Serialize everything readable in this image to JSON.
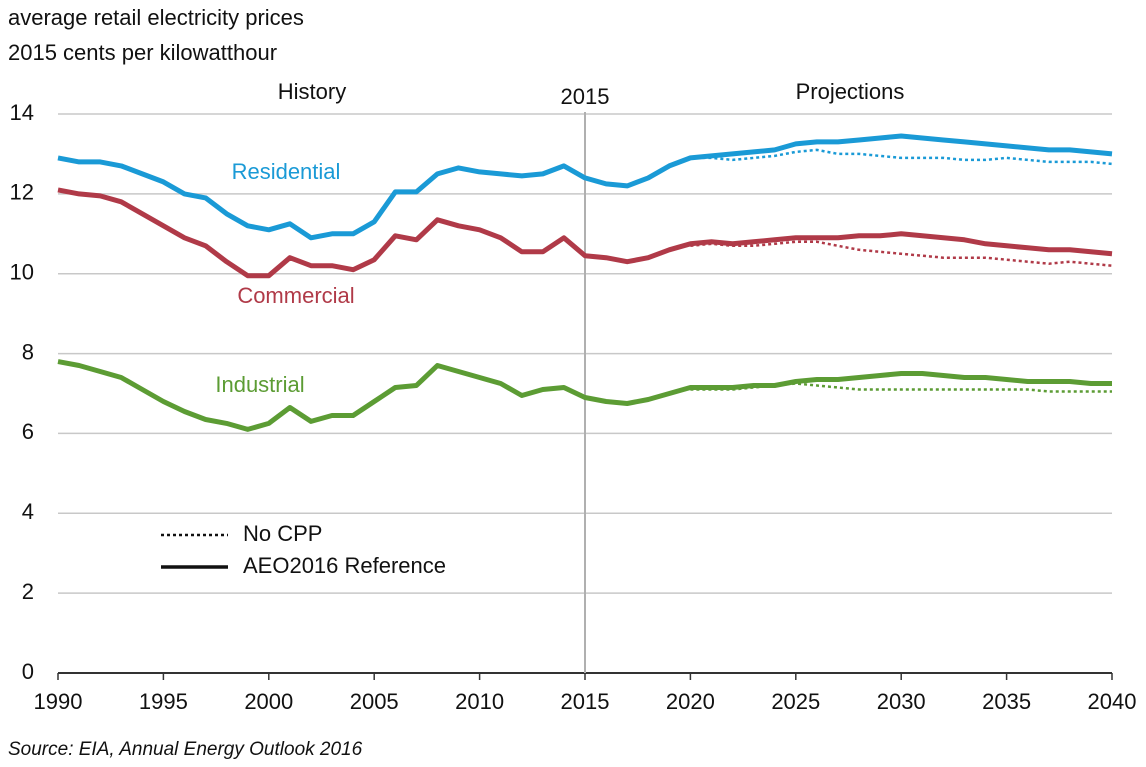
{
  "chart_data": {
    "type": "line",
    "title": "average retail electricity prices",
    "subtitle": "2015 cents per kilowatthour",
    "source": "Source:  EIA, Annual Energy Outlook 2016",
    "annotations": [
      {
        "text": "History"
      },
      {
        "text": "2015",
        "x": 2015
      },
      {
        "text": "Projections"
      }
    ],
    "legend": [
      {
        "label": "No CPP",
        "style": "dotted"
      },
      {
        "label": "AEO2016 Reference",
        "style": "solid"
      }
    ],
    "x": [
      1990,
      1991,
      1992,
      1993,
      1994,
      1995,
      1996,
      1997,
      1998,
      1999,
      2000,
      2001,
      2002,
      2003,
      2004,
      2005,
      2006,
      2007,
      2008,
      2009,
      2010,
      2011,
      2012,
      2013,
      2014,
      2015,
      2016,
      2017,
      2018,
      2019,
      2020,
      2021,
      2022,
      2023,
      2024,
      2025,
      2026,
      2027,
      2028,
      2029,
      2030,
      2031,
      2032,
      2033,
      2034,
      2035,
      2036,
      2037,
      2038,
      2039,
      2040
    ],
    "xlim": [
      1990,
      2040
    ],
    "xticks": [
      1990,
      1995,
      2000,
      2005,
      2010,
      2015,
      2020,
      2025,
      2030,
      2035,
      2040
    ],
    "ylim": [
      0,
      14
    ],
    "yticks": [
      0,
      2,
      4,
      6,
      8,
      10,
      12,
      14
    ],
    "grid": true,
    "series": [
      {
        "name": "Residential",
        "color": "#1a9ad6",
        "values": [
          12.9,
          12.8,
          12.8,
          12.7,
          12.5,
          12.3,
          12.0,
          11.9,
          11.5,
          11.2,
          11.1,
          11.25,
          10.9,
          11.0,
          11.0,
          11.3,
          12.05,
          12.05,
          12.5,
          12.65,
          12.55,
          12.5,
          12.45,
          12.5,
          12.7,
          12.4,
          12.25,
          12.2,
          12.4,
          12.7,
          12.9,
          12.95,
          13.0,
          13.05,
          13.1,
          13.25,
          13.3,
          13.3,
          13.35,
          13.4,
          13.45,
          13.4,
          13.35,
          13.3,
          13.25,
          13.2,
          13.15,
          13.1,
          13.1,
          13.05,
          13.0
        ],
        "no_cpp_values": [
          null,
          null,
          null,
          null,
          null,
          null,
          null,
          null,
          null,
          null,
          null,
          null,
          null,
          null,
          null,
          null,
          null,
          null,
          null,
          null,
          null,
          null,
          null,
          null,
          null,
          null,
          null,
          null,
          null,
          null,
          12.9,
          12.9,
          12.85,
          12.9,
          12.95,
          13.05,
          13.1,
          13.0,
          13.0,
          12.95,
          12.9,
          12.9,
          12.9,
          12.85,
          12.85,
          12.9,
          12.85,
          12.8,
          12.8,
          12.8,
          12.75
        ]
      },
      {
        "name": "Commercial",
        "color": "#b03a48",
        "values": [
          12.1,
          12.0,
          11.95,
          11.8,
          11.5,
          11.2,
          10.9,
          10.7,
          10.3,
          9.95,
          9.95,
          10.4,
          10.2,
          10.2,
          10.1,
          10.35,
          10.95,
          10.85,
          11.35,
          11.2,
          11.1,
          10.9,
          10.55,
          10.55,
          10.9,
          10.45,
          10.4,
          10.3,
          10.4,
          10.6,
          10.75,
          10.8,
          10.75,
          10.8,
          10.85,
          10.9,
          10.9,
          10.9,
          10.95,
          10.95,
          11.0,
          10.95,
          10.9,
          10.85,
          10.75,
          10.7,
          10.65,
          10.6,
          10.6,
          10.55,
          10.5
        ],
        "no_cpp_values": [
          null,
          null,
          null,
          null,
          null,
          null,
          null,
          null,
          null,
          null,
          null,
          null,
          null,
          null,
          null,
          null,
          null,
          null,
          null,
          null,
          null,
          null,
          null,
          null,
          null,
          null,
          null,
          null,
          null,
          null,
          10.7,
          10.75,
          10.7,
          10.7,
          10.75,
          10.8,
          10.8,
          10.7,
          10.6,
          10.55,
          10.5,
          10.45,
          10.4,
          10.4,
          10.4,
          10.35,
          10.3,
          10.25,
          10.3,
          10.25,
          10.2
        ]
      },
      {
        "name": "Industrial",
        "color": "#5c9c34",
        "values": [
          7.8,
          7.7,
          7.55,
          7.4,
          7.1,
          6.8,
          6.55,
          6.35,
          6.25,
          6.1,
          6.25,
          6.65,
          6.3,
          6.45,
          6.45,
          6.8,
          7.15,
          7.2,
          7.7,
          7.55,
          7.4,
          7.25,
          6.95,
          7.1,
          7.15,
          6.9,
          6.8,
          6.75,
          6.85,
          7.0,
          7.15,
          7.15,
          7.15,
          7.2,
          7.2,
          7.3,
          7.35,
          7.35,
          7.4,
          7.45,
          7.5,
          7.5,
          7.45,
          7.4,
          7.4,
          7.35,
          7.3,
          7.3,
          7.3,
          7.25,
          7.25
        ],
        "no_cpp_values": [
          null,
          null,
          null,
          null,
          null,
          null,
          null,
          null,
          null,
          null,
          null,
          null,
          null,
          null,
          null,
          null,
          null,
          null,
          null,
          null,
          null,
          null,
          null,
          null,
          null,
          null,
          null,
          null,
          null,
          null,
          7.1,
          7.1,
          7.1,
          7.15,
          7.2,
          7.25,
          7.2,
          7.15,
          7.1,
          7.1,
          7.1,
          7.1,
          7.1,
          7.1,
          7.1,
          7.1,
          7.1,
          7.05,
          7.05,
          7.05,
          7.05
        ]
      }
    ]
  }
}
